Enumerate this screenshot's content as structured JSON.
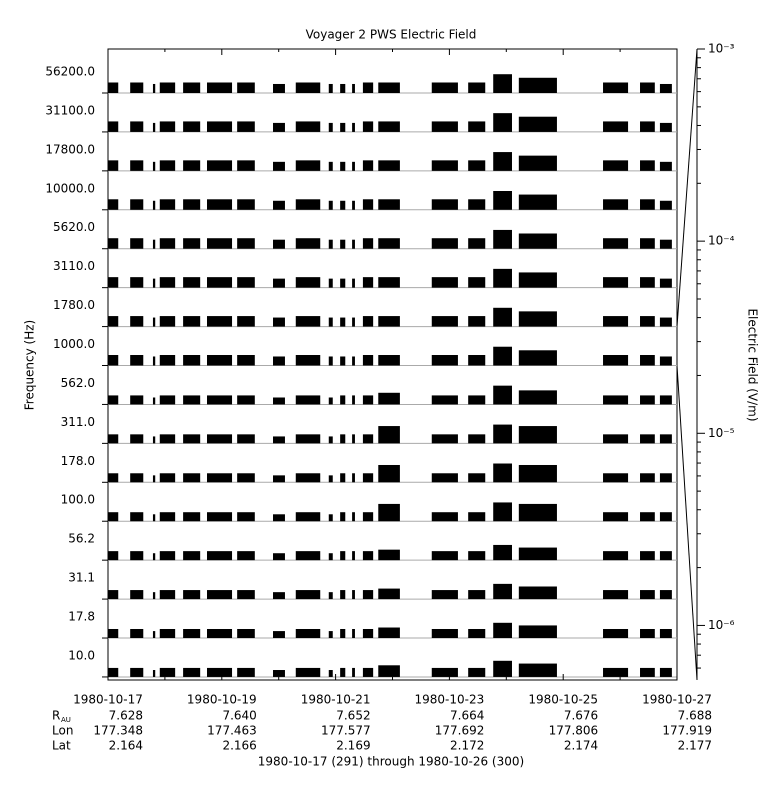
{
  "chart_data": {
    "type": "stack",
    "title": "Voyager 2 PWS Electric Field",
    "ylabel": "Frequency (Hz)",
    "y2label": "Electric Field (V/m)",
    "xlabel": "1980-10-17 (291) through 1980-10-26 (300)",
    "color": "#000000",
    "xlim": [
      291,
      301
    ],
    "xticks": [
      {
        "value": 291,
        "label": "1980-10-17"
      },
      {
        "value": 293,
        "label": "1980-10-19"
      },
      {
        "value": 295,
        "label": "1980-10-21"
      },
      {
        "value": 297,
        "label": "1980-10-23"
      },
      {
        "value": 299,
        "label": "1980-10-25"
      },
      {
        "value": 301,
        "label": "1980-10-27"
      }
    ],
    "y2log": true,
    "y2lim": [
      5.2e-07,
      0.001
    ],
    "y2ticks": [
      {
        "value": 1e-06,
        "label": "10⁻⁶"
      },
      {
        "value": 1e-05,
        "label": "10⁻⁵"
      },
      {
        "value": 0.0001,
        "label": "10⁻⁴"
      },
      {
        "value": 0.001,
        "label": "10⁻³"
      }
    ],
    "ephemeris": [
      {
        "label": "R",
        "sub": "AU",
        "values": [
          "7.628",
          "7.640",
          "7.652",
          "7.664",
          "7.676",
          "7.688"
        ]
      },
      {
        "label": "Lon",
        "values": [
          "177.348",
          "177.463",
          "177.577",
          "177.692",
          "177.806",
          "177.919"
        ]
      },
      {
        "label": "Lat",
        "values": [
          "2.164",
          "2.166",
          "2.169",
          "2.172",
          "2.174",
          "2.177"
        ]
      }
    ],
    "intervals": [
      [
        291.0,
        291.18
      ],
      [
        291.39,
        291.62
      ],
      [
        291.79,
        291.83
      ],
      [
        291.91,
        292.18
      ],
      [
        292.32,
        292.62
      ],
      [
        292.74,
        293.18
      ],
      [
        293.27,
        293.58
      ],
      [
        293.9,
        294.11
      ],
      [
        294.3,
        294.73
      ],
      [
        294.88,
        294.95
      ],
      [
        295.08,
        295.17
      ],
      [
        295.29,
        295.34
      ],
      [
        295.48,
        295.66
      ],
      [
        295.75,
        296.13
      ],
      [
        296.69,
        297.15
      ],
      [
        297.33,
        297.63
      ],
      [
        297.77,
        298.1
      ],
      [
        298.22,
        298.89
      ],
      [
        299.7,
        300.14
      ],
      [
        300.35,
        300.61
      ],
      [
        300.7,
        300.91
      ]
    ],
    "series": [
      {
        "name": "56200.0",
        "values": [
          4e-06,
          4e-06,
          3e-06,
          4e-06,
          4e-06,
          4e-06,
          4e-06,
          3e-06,
          4e-06,
          3e-06,
          3e-06,
          3e-06,
          4e-06,
          4e-06,
          4e-06,
          4e-06,
          2e-05,
          1e-05,
          4e-06,
          4e-06,
          3e-06
        ]
      },
      {
        "name": "31100.0",
        "values": [
          4e-06,
          4e-06,
          3e-06,
          4e-06,
          4e-06,
          4e-06,
          4e-06,
          3e-06,
          4e-06,
          3e-06,
          3e-06,
          3e-06,
          4e-06,
          4e-06,
          4e-06,
          4e-06,
          2e-05,
          1e-05,
          4e-06,
          4e-06,
          3e-06
        ]
      },
      {
        "name": "17800.0",
        "values": [
          4e-06,
          4e-06,
          3e-06,
          4e-06,
          4e-06,
          4e-06,
          4e-06,
          3e-06,
          4e-06,
          3e-06,
          3e-06,
          3e-06,
          4e-06,
          4e-06,
          4e-06,
          4e-06,
          2e-05,
          1e-05,
          4e-06,
          4e-06,
          3e-06
        ]
      },
      {
        "name": "10000.0",
        "values": [
          4e-06,
          4e-06,
          3e-06,
          4e-06,
          4e-06,
          4e-06,
          4e-06,
          3e-06,
          4e-06,
          3e-06,
          3e-06,
          3e-06,
          4e-06,
          4e-06,
          4e-06,
          4e-06,
          2e-05,
          1e-05,
          4e-06,
          4e-06,
          3e-06
        ]
      },
      {
        "name": "5620.0",
        "values": [
          4e-06,
          4e-06,
          3e-06,
          4e-06,
          4e-06,
          4e-06,
          4e-06,
          3e-06,
          4e-06,
          3e-06,
          3e-06,
          3e-06,
          4e-06,
          4e-06,
          4e-06,
          4e-06,
          2e-05,
          1e-05,
          4e-06,
          4e-06,
          3e-06
        ]
      },
      {
        "name": "3110.0",
        "values": [
          4e-06,
          4e-06,
          3e-06,
          4e-06,
          4e-06,
          4e-06,
          4e-06,
          3e-06,
          4e-06,
          3e-06,
          3e-06,
          3e-06,
          4e-06,
          4e-06,
          4e-06,
          4e-06,
          2e-05,
          1e-05,
          4e-06,
          4e-06,
          3e-06
        ]
      },
      {
        "name": "1780.0",
        "values": [
          4e-06,
          4e-06,
          3e-06,
          4e-06,
          4e-06,
          4e-06,
          4e-06,
          3e-06,
          4e-06,
          3e-06,
          3e-06,
          3e-06,
          4e-06,
          4e-06,
          4e-06,
          4e-06,
          2e-05,
          1e-05,
          4e-06,
          4e-06,
          3e-06
        ]
      },
      {
        "name": "1000.0",
        "values": [
          4e-06,
          4e-06,
          3e-06,
          4e-06,
          4e-06,
          4e-06,
          4e-06,
          3e-06,
          4e-06,
          3e-06,
          3e-06,
          3e-06,
          4e-06,
          4e-06,
          4e-06,
          4e-06,
          2e-05,
          1e-05,
          4e-06,
          4e-06,
          3e-06
        ]
      },
      {
        "name": "562.0",
        "values": [
          3e-06,
          3e-06,
          2e-06,
          3e-06,
          3e-06,
          3e-06,
          3e-06,
          2e-06,
          3e-06,
          2e-06,
          3e-06,
          3e-06,
          3e-06,
          5e-06,
          3e-06,
          3e-06,
          2e-05,
          8e-06,
          3e-06,
          3e-06,
          3e-06
        ]
      },
      {
        "name": "311.0",
        "values": [
          3e-06,
          3e-06,
          2e-06,
          3e-06,
          3e-06,
          3e-06,
          3e-06,
          2e-06,
          3e-06,
          2e-06,
          3e-06,
          3e-06,
          3e-06,
          1.5e-05,
          3e-06,
          3e-06,
          2e-05,
          1.5e-05,
          3e-06,
          3e-06,
          3e-06
        ]
      },
      {
        "name": "178.0",
        "values": [
          3e-06,
          3e-06,
          2e-06,
          3e-06,
          3e-06,
          3e-06,
          3e-06,
          2e-06,
          3e-06,
          2e-06,
          3e-06,
          3e-06,
          3e-06,
          1.5e-05,
          3e-06,
          3e-06,
          2e-05,
          1.5e-05,
          3e-06,
          3e-06,
          3e-06
        ]
      },
      {
        "name": "100.0",
        "values": [
          3e-06,
          3e-06,
          2e-06,
          3e-06,
          3e-06,
          3e-06,
          3e-06,
          2e-06,
          3e-06,
          2e-06,
          3e-06,
          3e-06,
          3e-06,
          1.5e-05,
          3e-06,
          3e-06,
          2e-05,
          1.5e-05,
          3e-06,
          3e-06,
          3e-06
        ]
      },
      {
        "name": "56.2",
        "values": [
          3e-06,
          3e-06,
          2e-06,
          3e-06,
          3e-06,
          3e-06,
          3e-06,
          2e-06,
          3e-06,
          2e-06,
          3e-06,
          3e-06,
          3e-06,
          4e-06,
          3e-06,
          3e-06,
          1e-05,
          6e-06,
          3e-06,
          3e-06,
          3e-06
        ]
      },
      {
        "name": "31.1",
        "values": [
          3e-06,
          3e-06,
          2e-06,
          3e-06,
          3e-06,
          3e-06,
          3e-06,
          2e-06,
          3e-06,
          2e-06,
          3e-06,
          3e-06,
          3e-06,
          4e-06,
          3e-06,
          3e-06,
          1e-05,
          6e-06,
          3e-06,
          3e-06,
          3e-06
        ]
      },
      {
        "name": "17.8",
        "values": [
          3e-06,
          3e-06,
          2e-06,
          3e-06,
          3e-06,
          3e-06,
          3e-06,
          2e-06,
          3e-06,
          2e-06,
          3e-06,
          3e-06,
          3e-06,
          4e-06,
          3e-06,
          3e-06,
          1e-05,
          6e-06,
          3e-06,
          3e-06,
          3e-06
        ]
      },
      {
        "name": "10.0",
        "values": [
          3e-06,
          3e-06,
          2e-06,
          3e-06,
          3e-06,
          3e-06,
          3e-06,
          2e-06,
          3e-06,
          2e-06,
          3e-06,
          3e-06,
          3e-06,
          5e-06,
          3e-06,
          3e-06,
          1.2e-05,
          7e-06,
          3e-06,
          3e-06,
          3e-06
        ]
      }
    ]
  }
}
